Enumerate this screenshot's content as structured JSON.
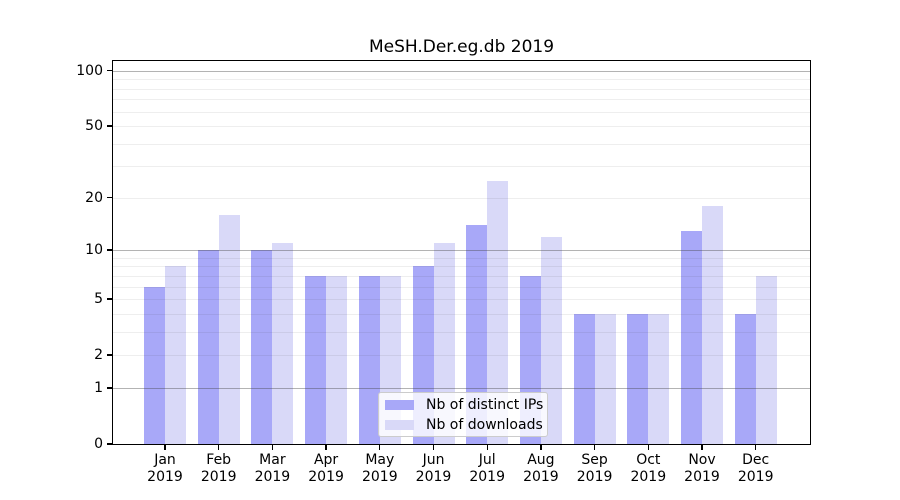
{
  "chart_data": {
    "type": "bar",
    "title": "MeSH.Der.eg.db 2019",
    "months": [
      "Jan",
      "Feb",
      "Mar",
      "Apr",
      "May",
      "Jun",
      "Jul",
      "Aug",
      "Sep",
      "Oct",
      "Nov",
      "Dec"
    ],
    "year_label": "2019",
    "series": [
      {
        "name": "Nb of distinct IPs",
        "color": "#a8a8f8",
        "values": [
          6,
          10,
          10,
          7,
          7,
          8,
          14,
          7,
          4,
          4,
          13,
          4
        ]
      },
      {
        "name": "Nb of downloads",
        "color": "#d9d9f8",
        "values": [
          8,
          16,
          11,
          7,
          7,
          11,
          25,
          12,
          4,
          4,
          18,
          7
        ]
      }
    ],
    "yscale": "log1p",
    "ylim": [
      0,
      113
    ],
    "y_tick_labels": [
      0,
      1,
      2,
      5,
      10,
      20,
      50,
      100
    ],
    "y_major_gridlines": [
      1,
      10,
      100
    ],
    "y_minor_gridlines": [
      2,
      3,
      4,
      5,
      6,
      7,
      8,
      9,
      20,
      30,
      40,
      50,
      60,
      70,
      80,
      90
    ],
    "grid": "horizontal",
    "legend_position": "inside-bottom-center"
  }
}
